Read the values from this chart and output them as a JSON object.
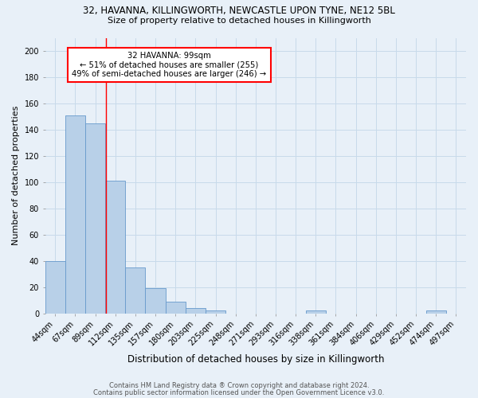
{
  "title_line1": "32, HAVANNA, KILLINGWORTH, NEWCASTLE UPON TYNE, NE12 5BL",
  "title_line2": "Size of property relative to detached houses in Killingworth",
  "xlabel": "Distribution of detached houses by size in Killingworth",
  "ylabel": "Number of detached properties",
  "categories": [
    "44sqm",
    "67sqm",
    "89sqm",
    "112sqm",
    "135sqm",
    "157sqm",
    "180sqm",
    "203sqm",
    "225sqm",
    "248sqm",
    "271sqm",
    "293sqm",
    "316sqm",
    "338sqm",
    "361sqm",
    "384sqm",
    "406sqm",
    "429sqm",
    "452sqm",
    "474sqm",
    "497sqm"
  ],
  "values": [
    40,
    151,
    145,
    101,
    35,
    19,
    9,
    4,
    2,
    0,
    0,
    0,
    0,
    2,
    0,
    0,
    0,
    0,
    0,
    2,
    0
  ],
  "bar_color": "#b8d0e8",
  "bar_edge_color": "#6699cc",
  "grid_color": "#c8daea",
  "background_color": "#e8f0f8",
  "red_line_x": 2.55,
  "annotation_text": "32 HAVANNA: 99sqm\n← 51% of detached houses are smaller (255)\n49% of semi-detached houses are larger (246) →",
  "annotation_box_color": "white",
  "annotation_box_edge_color": "red",
  "footer_line1": "Contains HM Land Registry data ® Crown copyright and database right 2024.",
  "footer_line2": "Contains public sector information licensed under the Open Government Licence v3.0.",
  "ylim": [
    0,
    210
  ],
  "yticks": [
    0,
    20,
    40,
    60,
    80,
    100,
    120,
    140,
    160,
    180,
    200
  ],
  "title1_fontsize": 8.5,
  "title2_fontsize": 8.0,
  "xlabel_fontsize": 8.5,
  "ylabel_fontsize": 8.0,
  "tick_fontsize": 7.0,
  "footer_fontsize": 6.0
}
